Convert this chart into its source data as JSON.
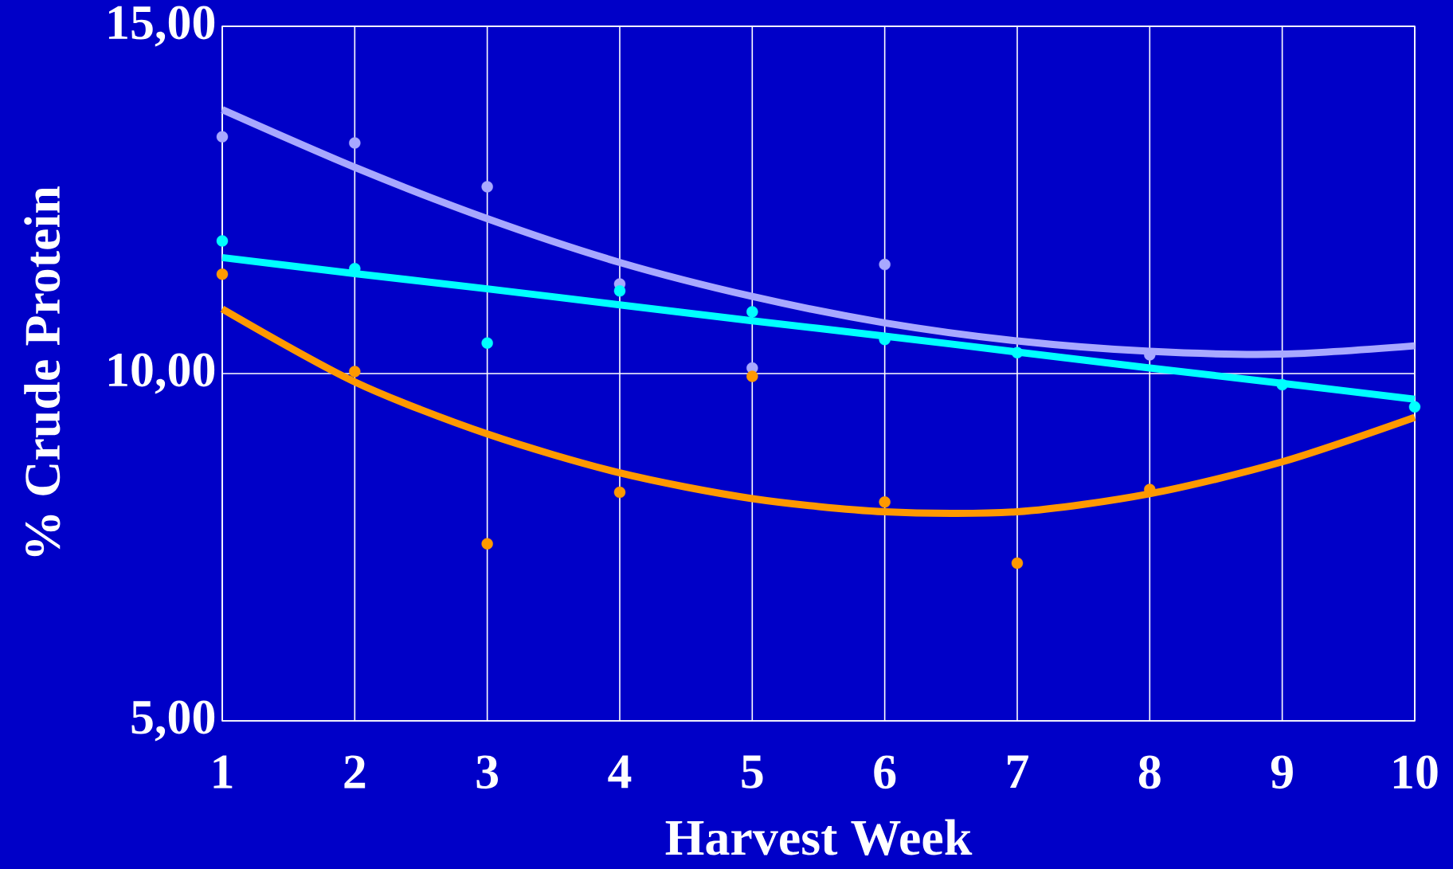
{
  "chart_data": {
    "type": "scatter",
    "xlabel": "Harvest Week",
    "ylabel": "% Crude Protein",
    "x": [
      1,
      2,
      3,
      4,
      5,
      6,
      7,
      8,
      9,
      10
    ],
    "xlim": [
      1,
      10
    ],
    "xticks": [
      1,
      2,
      3,
      4,
      5,
      6,
      7,
      8,
      9,
      10
    ],
    "ylim": [
      5,
      15
    ],
    "yticks": [
      {
        "value": 5,
        "label": "5,00"
      },
      {
        "value": 10,
        "label": "10,00"
      },
      {
        "value": 15,
        "label": "15,00"
      }
    ],
    "grid": true,
    "series": [
      {
        "type": "line",
        "color": "#a8a8ff",
        "marker": "none",
        "values": [
          13.8,
          12.97,
          12.23,
          11.6,
          11.11,
          10.73,
          10.47,
          10.32,
          10.28,
          10.4
        ]
      },
      {
        "type": "line",
        "color": "#00ffff",
        "marker": "none",
        "values": [
          11.67,
          11.44,
          11.22,
          10.99,
          10.76,
          10.54,
          10.31,
          10.08,
          9.86,
          9.63
        ]
      },
      {
        "type": "line",
        "color": "#ff9900",
        "marker": "none",
        "values": [
          10.93,
          9.88,
          9.13,
          8.57,
          8.2,
          8.01,
          8.01,
          8.27,
          8.73,
          9.37
        ]
      },
      {
        "color": "#a8a8ff",
        "marker": "circle",
        "values": [
          13.41,
          13.32,
          12.69,
          11.29,
          10.08,
          11.57,
          null,
          10.27,
          null,
          null
        ]
      },
      {
        "color": "#00ffff",
        "marker": "circle",
        "values": [
          11.91,
          11.51,
          10.44,
          11.19,
          10.89,
          10.49,
          10.3,
          null,
          9.84,
          9.52
        ]
      },
      {
        "color": "#ff9900",
        "marker": "circle",
        "values": [
          11.43,
          10.03,
          7.55,
          8.29,
          9.96,
          8.15,
          7.27,
          8.33,
          null,
          null
        ]
      }
    ]
  }
}
